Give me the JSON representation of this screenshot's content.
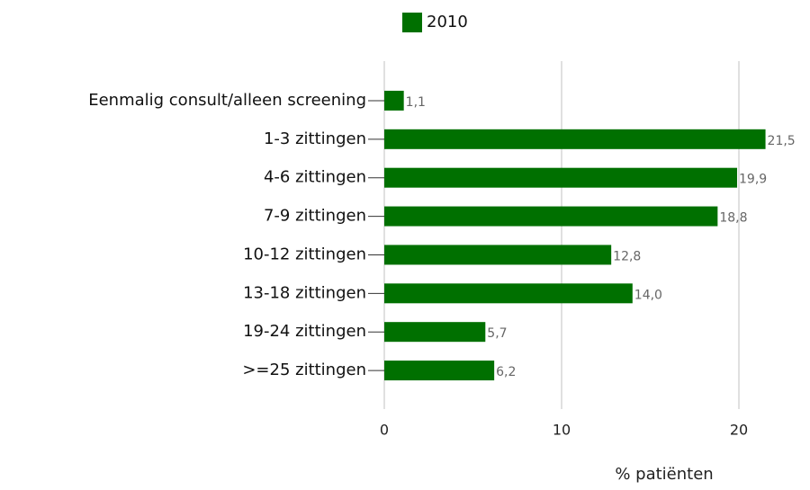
{
  "chart_data": {
    "type": "barh",
    "categories": [
      "Eenmalig consult/alleen screening",
      "1-3 zittingen",
      "4-6 zittingen",
      "7-9 zittingen",
      "10-12 zittingen",
      "13-18 zittingen",
      "19-24 zittingen",
      ">=25 zittingen"
    ],
    "series": [
      {
        "name": "2010",
        "color": "#007000",
        "values": [
          1.1,
          21.5,
          19.9,
          18.8,
          12.8,
          14.0,
          5.7,
          6.2
        ],
        "value_labels": [
          "1,1",
          "21,5",
          "19,9",
          "18,8",
          "12,8",
          "14,0",
          "5,7",
          "6,2"
        ]
      }
    ],
    "xlabel": "% patiënten",
    "xlim": [
      0,
      22
    ],
    "xticks": [
      0,
      10,
      20
    ],
    "grid": true,
    "legend": "top"
  }
}
